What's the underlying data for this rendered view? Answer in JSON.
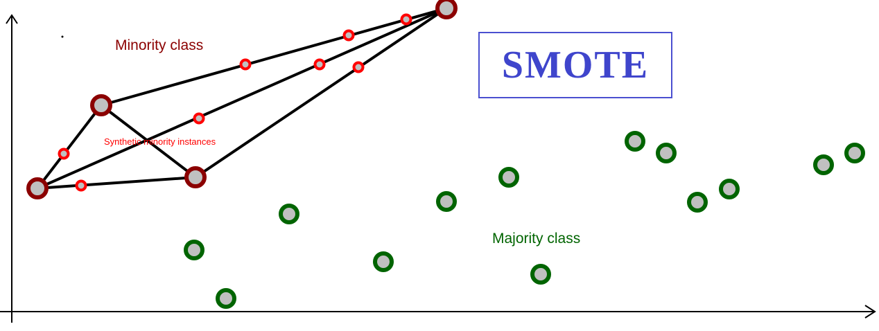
{
  "title": "SMOTE",
  "labels": {
    "minority": "Minority class",
    "synthetic": "Synthetic minority instances",
    "majority": "Majority class"
  },
  "colors": {
    "title": "#3f45cc",
    "title_border": "#4a4fd0",
    "minority": "#8b0000",
    "synthetic": "#ff0000",
    "majority": "#006400",
    "point_fill": "#c0c0c0",
    "axis": "#000000"
  }
}
